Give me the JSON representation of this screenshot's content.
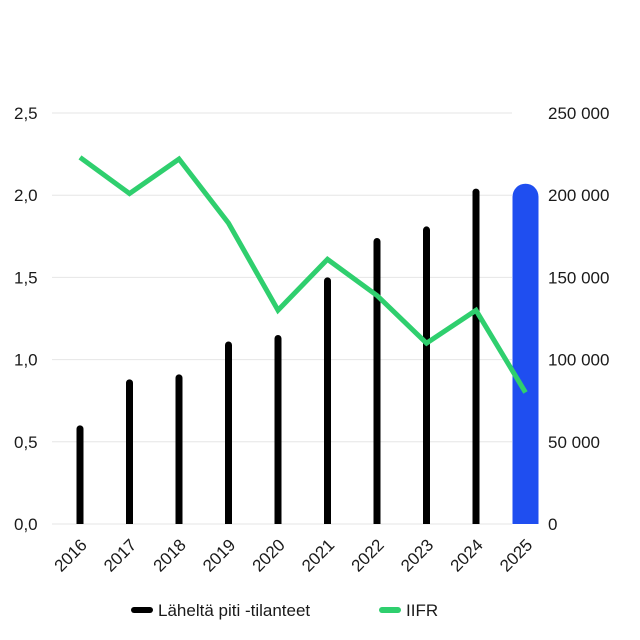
{
  "chart_data": {
    "type": "bar",
    "categories": [
      "2016",
      "2017",
      "2018",
      "2019",
      "2020",
      "2021",
      "2022",
      "2023",
      "2024",
      "2025"
    ],
    "series": [
      {
        "name": "Läheltä piti -tilanteet",
        "type": "bar",
        "axis": "right",
        "values": [
          60000,
          88000,
          91000,
          111000,
          115000,
          150000,
          174000,
          181000,
          204000,
          207000
        ],
        "color": "#000000",
        "highlight_color": "#1f4ef0",
        "highlight_index": 9
      },
      {
        "name": "IIFR",
        "type": "line",
        "axis": "left",
        "values": [
          2.23,
          2.01,
          2.22,
          1.83,
          1.3,
          1.61,
          1.39,
          1.1,
          1.3,
          0.8
        ],
        "color": "#2fcf6e"
      }
    ],
    "y_left": {
      "ylim": [
        0,
        2.5
      ],
      "ticks": [
        "0,0",
        "0,5",
        "1,0",
        "1,5",
        "2,0",
        "2,5"
      ]
    },
    "y_right": {
      "ylim": [
        0,
        250000
      ],
      "ticks": [
        "0",
        "50 000",
        "100 000",
        "150 000",
        "200 000",
        "250 000"
      ]
    },
    "grid": true,
    "legend_position": "bottom"
  }
}
